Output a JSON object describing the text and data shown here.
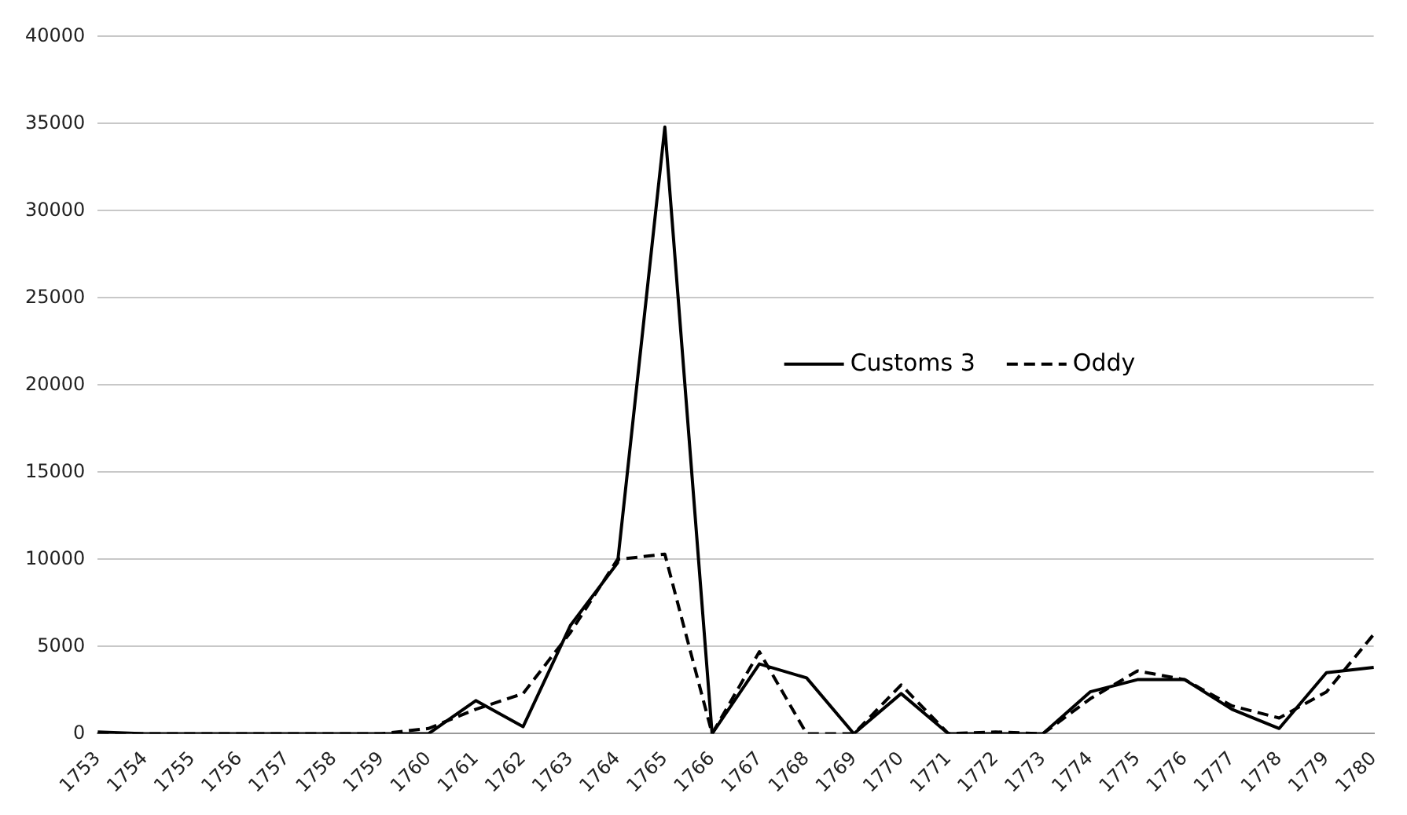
{
  "chart_data": {
    "type": "line",
    "categories": [
      "1753",
      "1754",
      "1755",
      "1756",
      "1757",
      "1758",
      "1759",
      "1760",
      "1761",
      "1762",
      "1763",
      "1764",
      "1765",
      "1766",
      "1767",
      "1768",
      "1769",
      "1770",
      "1771",
      "1772",
      "1773",
      "1774",
      "1775",
      "1776",
      "1777",
      "1778",
      "1779",
      "1780"
    ],
    "series": [
      {
        "name": "Customs 3",
        "color": "#000000",
        "line_style": "solid",
        "values": [
          100,
          0,
          0,
          0,
          0,
          0,
          0,
          0,
          1900,
          400,
          6200,
          9800,
          34800,
          0,
          4000,
          3200,
          0,
          2300,
          0,
          0,
          0,
          2400,
          3100,
          3100,
          1400,
          300,
          3500,
          3800
        ]
      },
      {
        "name": "Oddy",
        "color": "#000000",
        "line_style": "dashed",
        "values": [
          0,
          0,
          0,
          0,
          0,
          0,
          0,
          300,
          1400,
          2300,
          5800,
          10000,
          10300,
          0,
          4700,
          0,
          0,
          2800,
          0,
          100,
          0,
          2000,
          3600,
          3100,
          1600,
          900,
          2400,
          5700
        ]
      }
    ],
    "ylim": [
      0,
      40000
    ],
    "yticks": [
      0,
      5000,
      10000,
      15000,
      20000,
      25000,
      30000,
      35000,
      40000
    ],
    "grid": "y",
    "legend": "right",
    "marker": "none"
  }
}
